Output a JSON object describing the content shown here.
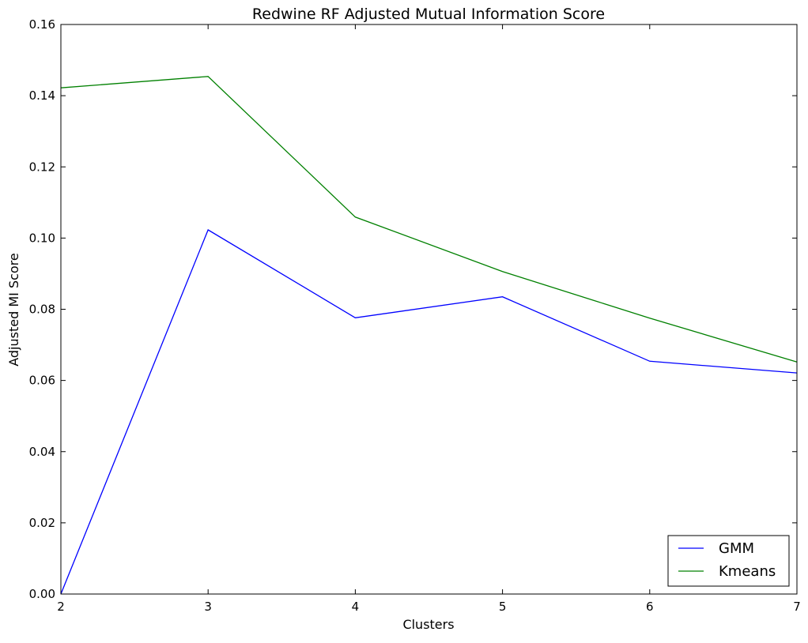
{
  "chart_data": {
    "type": "line",
    "title": "Redwine RF Adjusted Mutual Information Score",
    "xlabel": "Clusters",
    "ylabel": "Adjusted MI Score",
    "x": [
      2,
      3,
      4,
      5,
      6,
      7
    ],
    "xlim": [
      2,
      7
    ],
    "ylim": [
      0,
      0.16
    ],
    "xticks": [
      "2",
      "3",
      "4",
      "5",
      "6",
      "7"
    ],
    "yticks": [
      "0.00",
      "0.02",
      "0.04",
      "0.06",
      "0.08",
      "0.10",
      "0.12",
      "0.14",
      "0.16"
    ],
    "grid": false,
    "legend_position": "lower-right",
    "series": [
      {
        "name": "GMM",
        "color": "#0000ff",
        "values": [
          0.0,
          0.1023,
          0.0776,
          0.0835,
          0.0654,
          0.0621
        ]
      },
      {
        "name": "Kmeans",
        "color": "#008000",
        "values": [
          0.1422,
          0.1454,
          0.1059,
          0.0906,
          0.0775,
          0.0652
        ]
      }
    ]
  }
}
